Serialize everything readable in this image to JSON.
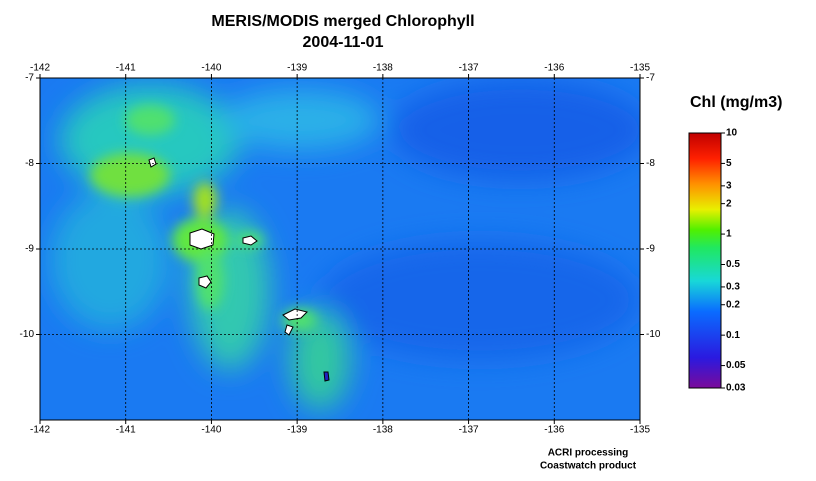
{
  "title": "MERIS/MODIS merged Chlorophyll",
  "subtitle": "2004-11-01",
  "map": {
    "xlim": [
      -142,
      -135
    ],
    "ylim": [
      -11,
      -7
    ],
    "xticks": [
      -142,
      -141,
      -140,
      -139,
      -138,
      -137,
      -136,
      -135
    ],
    "yticks": [
      -10,
      -9,
      -8,
      -7
    ],
    "grid": true
  },
  "colorbar": {
    "title": "Chl (mg/m3)",
    "lim": [
      0.03,
      10
    ],
    "log": true,
    "ticks": [
      0.03,
      0.05,
      0.1,
      0.2,
      0.3,
      0.5,
      1,
      2,
      3,
      5,
      10
    ]
  },
  "credits": [
    "ACRI processing",
    "Coastwatch product"
  ]
}
